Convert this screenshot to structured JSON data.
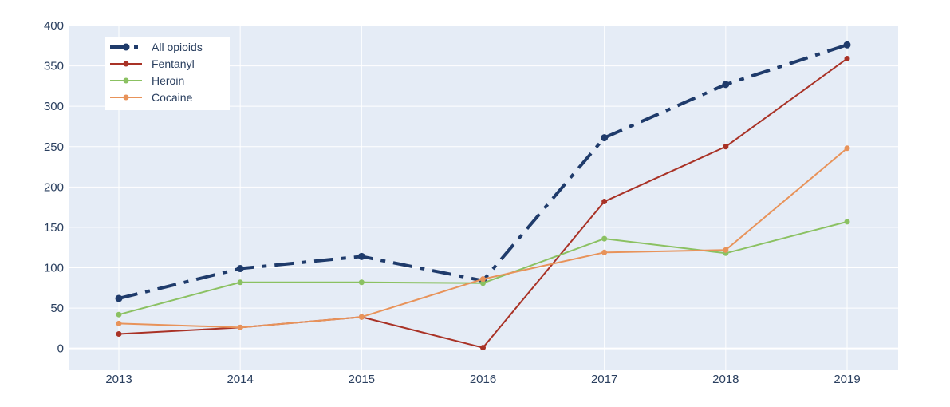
{
  "chart_data": {
    "type": "line",
    "title": "",
    "xlabel": "",
    "ylabel": "",
    "x": [
      "2013",
      "2014",
      "2015",
      "2016",
      "2017",
      "2018",
      "2019"
    ],
    "ylim": [
      -27,
      400
    ],
    "yticks": [
      0,
      50,
      100,
      150,
      200,
      250,
      300,
      350,
      400
    ],
    "grid": true,
    "legend_position": "top-left",
    "colors": {
      "plot_background": "#e5ecf6",
      "grid": "#ffffff",
      "tick_text": "#2a3f5f"
    },
    "series": [
      {
        "name": "All opioids",
        "color": "#1f3b6b",
        "dash": "dashdot",
        "width": 4,
        "values": [
          62,
          99,
          114,
          84,
          261,
          327,
          376
        ]
      },
      {
        "name": "Fentanyl",
        "color": "#a93226",
        "dash": "solid",
        "width": 2,
        "values": [
          18,
          26,
          39,
          1,
          182,
          250,
          359
        ]
      },
      {
        "name": "Heroin",
        "color": "#8bc162",
        "dash": "solid",
        "width": 2,
        "values": [
          42,
          82,
          82,
          81,
          136,
          118,
          157
        ]
      },
      {
        "name": "Cocaine",
        "color": "#e8935a",
        "dash": "solid",
        "width": 2,
        "values": [
          31,
          26,
          39,
          86,
          119,
          122,
          248
        ]
      }
    ]
  }
}
